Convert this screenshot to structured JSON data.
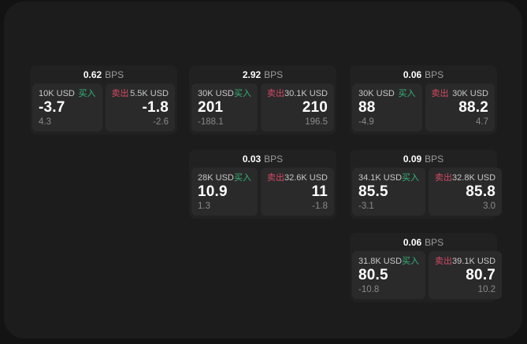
{
  "labels": {
    "bps_unit": "BPS",
    "buy": "买入",
    "sell": "卖出"
  },
  "colors": {
    "buy": "#35b575",
    "sell": "#d24a62",
    "value_text": "#ffffff",
    "muted_text": "#8a8a8a",
    "panel_bg": "#1c1c1c",
    "card_bg": "#212121",
    "tile_bg": "#2a2a2b"
  },
  "cards": [
    {
      "bps": "0.62",
      "buy": {
        "amount": "10K USD",
        "value": "-3.7",
        "sub": "4.3"
      },
      "sell": {
        "amount": "5.5K USD",
        "value": "-1.8",
        "sub": "-2.6"
      }
    },
    {
      "bps": "2.92",
      "buy": {
        "amount": "30K USD",
        "value": "201",
        "sub": "-188.1"
      },
      "sell": {
        "amount": "30.1K USD",
        "value": "210",
        "sub": "196.5"
      }
    },
    {
      "bps": "0.06",
      "buy": {
        "amount": "30K USD",
        "value": "88",
        "sub": "-4.9"
      },
      "sell": {
        "amount": "30K USD",
        "value": "88.2",
        "sub": "4.7"
      }
    },
    {
      "bps": "0.03",
      "buy": {
        "amount": "28K USD",
        "value": "10.9",
        "sub": "1.3"
      },
      "sell": {
        "amount": "32.6K USD",
        "value": "11",
        "sub": "-1.8"
      }
    },
    {
      "bps": "0.09",
      "buy": {
        "amount": "34.1K USD",
        "value": "85.5",
        "sub": "-3.1"
      },
      "sell": {
        "amount": "32.8K USD",
        "value": "85.8",
        "sub": "3.0"
      }
    },
    {
      "bps": "0.06",
      "buy": {
        "amount": "31.8K USD",
        "value": "80.5",
        "sub": "-10.8"
      },
      "sell": {
        "amount": "39.1K USD",
        "value": "80.7",
        "sub": "10.2"
      }
    }
  ]
}
